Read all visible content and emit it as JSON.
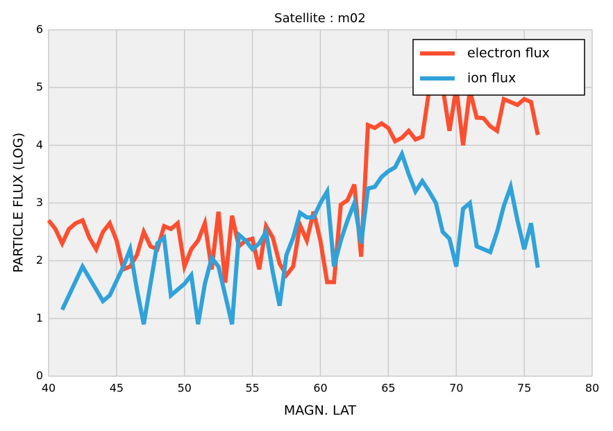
{
  "chart_data": {
    "type": "line",
    "title": "Satellite : m02",
    "xlabel": "MAGN. LAT",
    "ylabel": "PARTICLE FLUX (LOG)",
    "x": [
      40,
      40.5,
      41,
      41.5,
      42,
      42.5,
      43,
      43.5,
      44,
      44.5,
      45,
      45.5,
      46,
      46.5,
      47,
      47.5,
      48,
      48.5,
      49,
      49.5,
      50,
      50.5,
      51,
      51.5,
      52,
      52.5,
      53,
      53.5,
      54,
      54.5,
      55,
      55.5,
      56,
      56.5,
      57,
      57.5,
      58,
      58.5,
      59,
      59.5,
      60,
      60.5,
      61,
      61.5,
      62,
      62.5,
      63,
      63.5,
      64,
      64.5,
      65,
      65.5,
      66,
      66.5,
      67,
      67.5,
      68,
      68.5,
      69,
      69.5,
      70,
      70.5,
      71,
      71.5,
      72,
      72.5,
      73,
      73.5,
      74,
      74.5,
      75,
      75.5,
      76
    ],
    "series": [
      {
        "name": "electron flux",
        "color": "#fc4f30",
        "values": [
          2.7,
          2.55,
          2.3,
          2.55,
          2.65,
          2.7,
          2.4,
          2.2,
          2.5,
          2.65,
          2.35,
          1.85,
          1.9,
          2.1,
          2.5,
          2.25,
          2.2,
          2.6,
          2.55,
          2.65,
          1.9,
          2.2,
          2.35,
          2.65,
          1.85,
          2.85,
          1.62,
          2.78,
          2.25,
          2.35,
          2.38,
          1.85,
          2.6,
          2.4,
          1.95,
          1.75,
          1.9,
          2.62,
          2.35,
          2.85,
          2.35,
          1.63,
          1.63,
          2.97,
          3.05,
          3.32,
          2.07,
          4.35,
          4.3,
          4.38,
          4.3,
          4.07,
          4.13,
          4.25,
          4.1,
          4.15,
          4.95,
          4.9,
          5.0,
          4.25,
          5.0,
          4.0,
          4.95,
          4.48,
          4.47,
          4.33,
          4.25,
          4.8,
          4.75,
          4.7,
          4.8,
          4.75,
          4.18
        ]
      },
      {
        "name": "ion flux",
        "color": "#30a2da",
        "values": [
          null,
          null,
          1.15,
          1.4,
          1.65,
          1.9,
          1.7,
          1.5,
          1.3,
          1.4,
          1.65,
          1.9,
          2.2,
          1.5,
          0.9,
          1.6,
          2.3,
          2.4,
          1.4,
          1.5,
          1.6,
          1.75,
          0.9,
          1.6,
          2.05,
          1.9,
          1.4,
          0.9,
          2.45,
          2.35,
          2.2,
          2.3,
          2.5,
          1.8,
          1.22,
          2.1,
          2.4,
          2.83,
          2.75,
          2.75,
          3.0,
          3.2,
          1.9,
          2.35,
          2.7,
          3.0,
          2.3,
          3.25,
          3.28,
          3.45,
          3.55,
          3.62,
          3.85,
          3.5,
          3.2,
          3.38,
          3.2,
          3.0,
          2.5,
          2.38,
          1.9,
          2.9,
          3.0,
          2.25,
          2.2,
          2.15,
          2.5,
          2.95,
          3.28,
          2.7,
          2.2,
          2.65,
          1.88
        ]
      }
    ],
    "xlim": [
      40,
      80
    ],
    "xticks": [
      40,
      45,
      50,
      55,
      60,
      65,
      70,
      75,
      80
    ],
    "ylim": [
      0,
      6
    ],
    "yticks": [
      0,
      1,
      2,
      3,
      4,
      5,
      6
    ],
    "grid": true,
    "legend": "upper right"
  }
}
